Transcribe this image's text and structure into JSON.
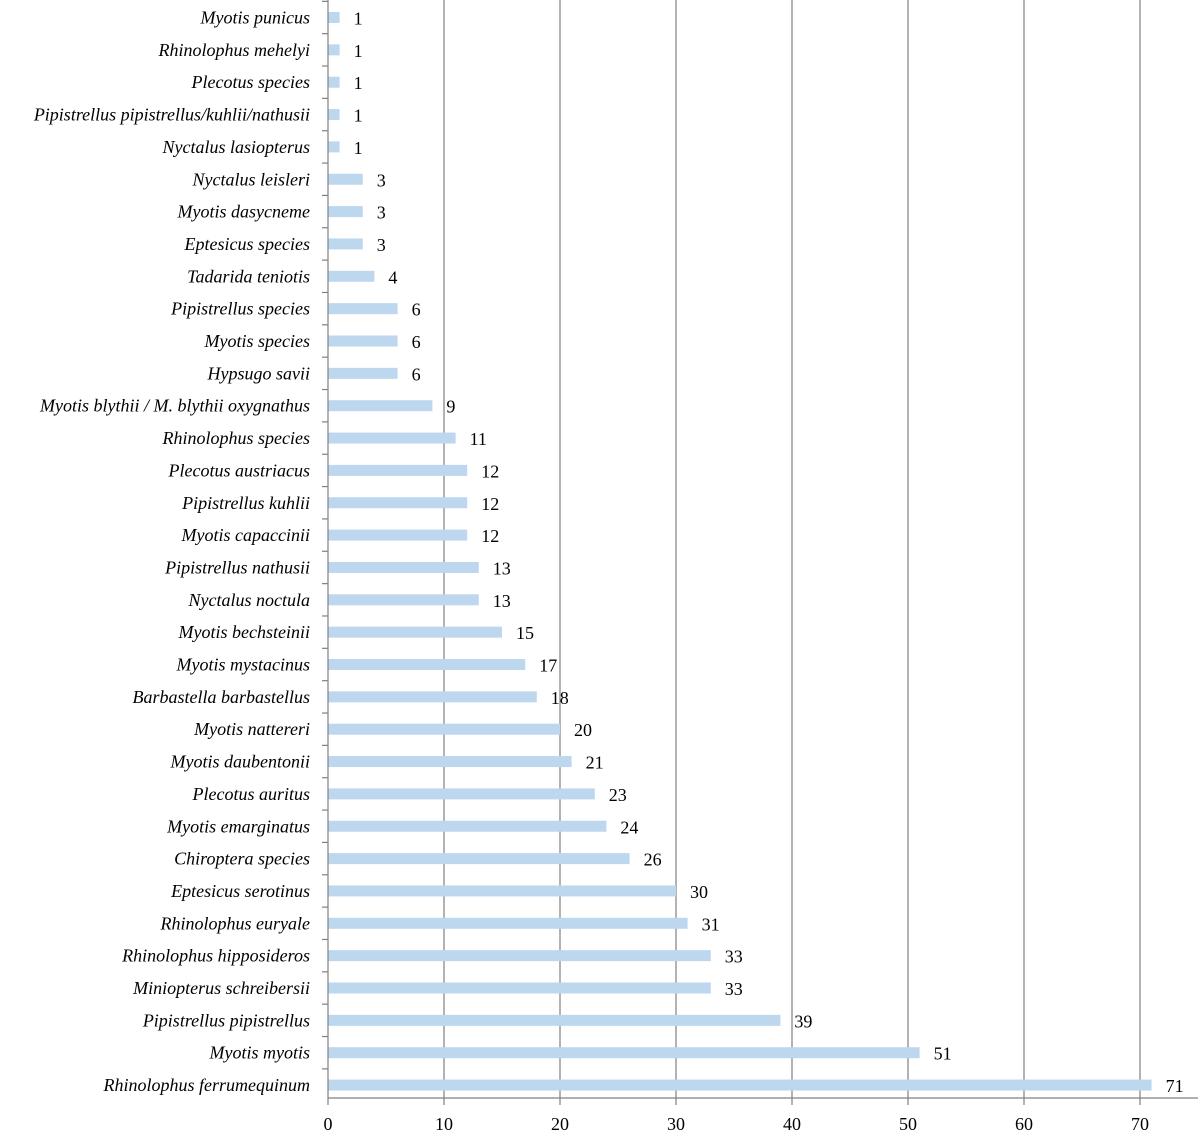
{
  "chart_data": {
    "type": "bar",
    "orientation": "horizontal",
    "categories": [
      "Myotis punicus",
      "Rhinolophus mehelyi",
      "Plecotus species",
      "Pipistrellus pipistrellus/kuhlii/nathusii",
      "Nyctalus lasiopterus",
      "Nyctalus leisleri",
      "Myotis dasycneme",
      "Eptesicus species",
      "Tadarida teniotis",
      "Pipistrellus species",
      "Myotis species",
      "Hypsugo savii",
      "Myotis blythii / M. blythii oxygnathus",
      "Rhinolophus species",
      "Plecotus austriacus",
      "Pipistrellus kuhlii",
      "Myotis capaccinii",
      "Pipistrellus nathusii",
      "Nyctalus noctula",
      "Myotis bechsteinii",
      "Myotis mystacinus",
      "Barbastella barbastellus",
      "Myotis nattereri",
      "Myotis daubentonii",
      "Plecotus auritus",
      "Myotis emarginatus",
      "Chiroptera species",
      "Eptesicus serotinus",
      "Rhinolophus euryale",
      "Rhinolophus hipposideros",
      "Miniopterus schreibersii",
      "Pipistrellus pipistrellus",
      "Myotis myotis",
      "Rhinolophus ferrumequinum"
    ],
    "values": [
      1,
      1,
      1,
      1,
      1,
      3,
      3,
      3,
      4,
      6,
      6,
      6,
      9,
      11,
      12,
      12,
      12,
      13,
      13,
      15,
      17,
      18,
      20,
      21,
      23,
      24,
      26,
      30,
      31,
      33,
      33,
      39,
      51,
      71
    ],
    "xlim": [
      0,
      75
    ],
    "xticks": [
      0,
      10,
      20,
      30,
      40,
      50,
      60,
      70
    ],
    "grid": "vertical",
    "data_labels": true,
    "colors": {
      "bar": "#bdd7ee",
      "grid": "#808080",
      "axis": "#808080"
    }
  }
}
